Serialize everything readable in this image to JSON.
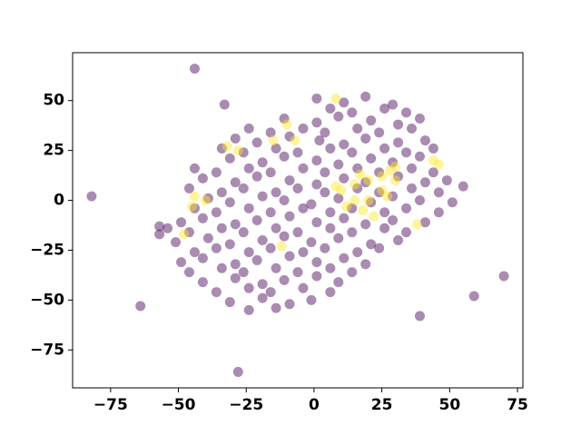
{
  "chart_data": {
    "type": "scatter",
    "xlim": [
      -89,
      77
    ],
    "ylim": [
      -94,
      74
    ],
    "xticks": [
      {
        "value": -75,
        "label": "−75"
      },
      {
        "value": -50,
        "label": "−50"
      },
      {
        "value": -25,
        "label": "−25"
      },
      0,
      25,
      50,
      75
    ],
    "yticks": [
      {
        "value": -75,
        "label": "−75"
      },
      {
        "value": -50,
        "label": "−50"
      },
      {
        "value": -25,
        "label": "−25"
      },
      0,
      25,
      50
    ],
    "series": [
      {
        "color": "#440154",
        "x": [
          1,
          11,
          19,
          29,
          -11,
          1,
          9,
          21,
          31,
          39,
          -29,
          -21,
          -9,
          2,
          11,
          19,
          31,
          41,
          -31,
          -19,
          -11,
          1,
          9,
          21,
          29,
          39,
          -41,
          -29,
          -21,
          -9,
          1,
          11,
          19,
          31,
          41,
          49,
          -39,
          -31,
          -19,
          -11,
          -1,
          9,
          21,
          29,
          39,
          51,
          -49,
          -41,
          -29,
          -21,
          -9,
          1,
          11,
          19,
          29,
          41,
          -51,
          -39,
          -31,
          -19,
          -11,
          -1,
          9,
          21,
          31,
          -49,
          -41,
          -29,
          -21,
          -9,
          1,
          11,
          19,
          -41,
          -29,
          -19,
          -11,
          1,
          9,
          -31,
          -19,
          -9,
          -1,
          6,
          14,
          26,
          34,
          -24,
          -16,
          -4,
          4,
          16,
          24,
          36,
          -34,
          -26,
          -14,
          -6,
          6,
          14,
          26,
          34,
          44,
          -44,
          -36,
          -24,
          -16,
          -4,
          4,
          16,
          24,
          36,
          44,
          -46,
          -34,
          -26,
          -14,
          -6,
          4,
          16,
          24,
          36,
          46,
          -44,
          -36,
          -24,
          -16,
          -4,
          6,
          14,
          26,
          34,
          46,
          -54,
          -46,
          -34,
          -26,
          -14,
          -6,
          6,
          14,
          26,
          34,
          -44,
          -36,
          -24,
          -16,
          -4,
          4,
          16,
          24,
          -46,
          -34,
          -26,
          -14,
          -6,
          6,
          14,
          -36,
          -24,
          -16,
          -4,
          6,
          -24,
          -14,
          -44,
          -33,
          -82,
          -64,
          -28,
          39,
          59,
          70,
          -57,
          -57,
          55
        ],
        "values": [
          51,
          49,
          52,
          48,
          41,
          39,
          42,
          40,
          38,
          41,
          31,
          29,
          32,
          30,
          28,
          31,
          29,
          30,
          21,
          19,
          22,
          20,
          18,
          21,
          19,
          22,
          11,
          9,
          12,
          10,
          8,
          11,
          9,
          12,
          9,
          10,
          1,
          -1,
          2,
          0,
          -2,
          1,
          -1,
          2,
          0,
          -1,
          -11,
          -9,
          -12,
          -10,
          -8,
          -11,
          -9,
          -12,
          -10,
          -11,
          -21,
          -19,
          -22,
          -20,
          -18,
          -21,
          -19,
          -22,
          -20,
          -31,
          -29,
          -32,
          -30,
          -28,
          -31,
          -29,
          -32,
          -41,
          -39,
          -42,
          -40,
          -38,
          -41,
          -51,
          -49,
          -52,
          -50,
          46,
          44,
          46,
          44,
          36,
          34,
          36,
          34,
          36,
          34,
          36,
          26,
          24,
          26,
          24,
          26,
          24,
          26,
          24,
          26,
          16,
          14,
          16,
          14,
          16,
          14,
          16,
          14,
          16,
          14,
          6,
          4,
          6,
          4,
          6,
          4,
          6,
          4,
          6,
          4,
          -4,
          -6,
          -4,
          -6,
          -4,
          -6,
          -4,
          -6,
          -4,
          -6,
          -14,
          -16,
          -14,
          -16,
          -14,
          -16,
          -14,
          -16,
          -14,
          -16,
          -26,
          -24,
          -26,
          -24,
          -26,
          -24,
          -26,
          -24,
          -36,
          -34,
          -36,
          -34,
          -36,
          -34,
          -36,
          -46,
          -44,
          -46,
          -44,
          -46,
          -55,
          -54,
          66,
          48,
          2,
          -53,
          -86,
          -58,
          -48,
          -38,
          -13,
          -17,
          7
        ]
      },
      {
        "color": "#fde725",
        "x": [
          10,
          15,
          20,
          25,
          28,
          30,
          15,
          20,
          25,
          12,
          18,
          22,
          8,
          30,
          27,
          17,
          -44,
          -40,
          -45,
          -48,
          -28,
          -32,
          -15,
          -7,
          46,
          44,
          -12,
          38,
          8,
          -10
        ],
        "values": [
          5,
          8,
          10,
          12,
          15,
          17,
          0,
          0,
          5,
          -3,
          -5,
          -8,
          7,
          10,
          2,
          13,
          2,
          0,
          -3,
          -17,
          25,
          27,
          30,
          30,
          18,
          20,
          -23,
          -12,
          51,
          38
        ]
      }
    ]
  }
}
